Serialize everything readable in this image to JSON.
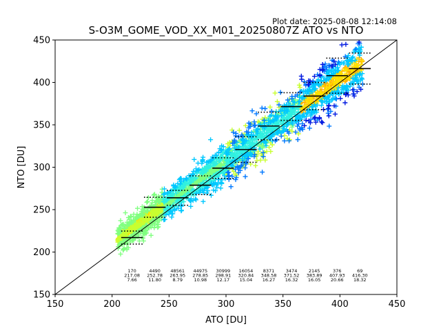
{
  "chart_data": {
    "type": "scatter",
    "title": "S-O3M_GOME_VOD_XX_M01_20250807Z ATO vs NTO",
    "plot_date": "Plot date: 2025-08-08 12:14:08",
    "xlabel": "ATO [DU]",
    "ylabel": "NTO [DU]",
    "xlim": [
      150,
      450
    ],
    "ylim": [
      150,
      450
    ],
    "xticks": [
      150,
      200,
      250,
      300,
      350,
      400,
      450
    ],
    "yticks": [
      150,
      200,
      250,
      300,
      350,
      400,
      450
    ],
    "grid": false,
    "reference_line": "1:1",
    "colors": {
      "density": [
        "#0018e0",
        "#0078ff",
        "#00c8ff",
        "#30f0e0",
        "#80ff80",
        "#c8ff30",
        "#ffe000",
        "#ffb000"
      ]
    },
    "bins": [
      {
        "x": 217.5,
        "count": "170",
        "mean": "217.08",
        "std": "7.66"
      },
      {
        "x": 237.5,
        "count": "4490",
        "mean": "252.78",
        "std": "11.80"
      },
      {
        "x": 257.5,
        "count": "48561",
        "mean": "263.95",
        "std": "8.79"
      },
      {
        "x": 277.5,
        "count": "44975",
        "mean": "278.85",
        "std": "10.98"
      },
      {
        "x": 297.5,
        "count": "30999",
        "mean": "298.91",
        "std": "12.17"
      },
      {
        "x": 317.5,
        "count": "16054",
        "mean": "320.84",
        "std": "15.04"
      },
      {
        "x": 337.5,
        "count": "8371",
        "mean": "348.58",
        "std": "16.27"
      },
      {
        "x": 357.5,
        "count": "3474",
        "mean": "371.52",
        "std": "16.32"
      },
      {
        "x": 377.5,
        "count": "2145",
        "mean": "383.89",
        "std": "16.05"
      },
      {
        "x": 397.5,
        "count": "376",
        "mean": "407.93",
        "std": "20.66"
      },
      {
        "x": 417.5,
        "count": "69",
        "mean": "416.30",
        "std": "18.32"
      }
    ]
  }
}
